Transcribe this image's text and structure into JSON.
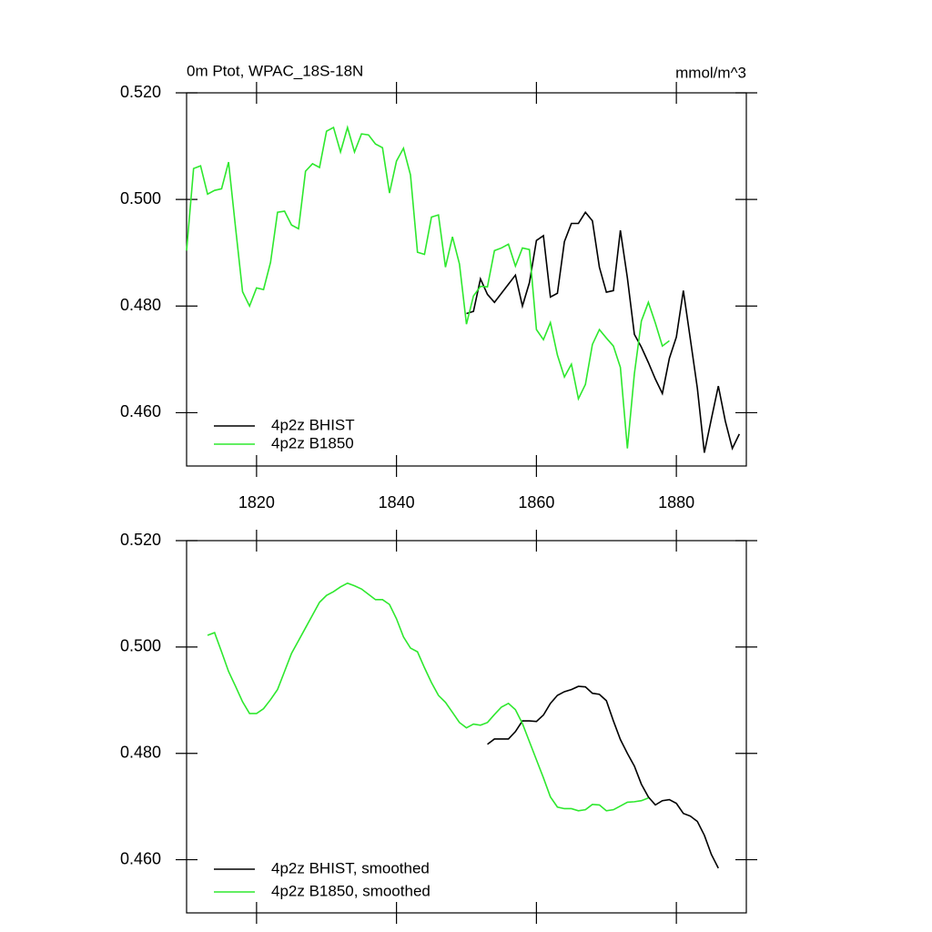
{
  "chart_data": [
    {
      "type": "line",
      "title": "0m Ptot, WPAC_18S-18N",
      "units": "mmol/m^3",
      "x": [
        1810,
        1811,
        1812,
        1813,
        1814,
        1815,
        1816,
        1817,
        1818,
        1819,
        1820,
        1821,
        1822,
        1823,
        1824,
        1825,
        1826,
        1827,
        1828,
        1829,
        1830,
        1831,
        1832,
        1833,
        1834,
        1835,
        1836,
        1837,
        1838,
        1839,
        1840,
        1841,
        1842,
        1843,
        1844,
        1845,
        1846,
        1847,
        1848,
        1849,
        1850,
        1851,
        1852,
        1853,
        1854,
        1855,
        1856,
        1857,
        1858,
        1859,
        1860,
        1861,
        1862,
        1863,
        1864,
        1865,
        1866,
        1867,
        1868,
        1869,
        1870,
        1871,
        1872,
        1873,
        1874,
        1875,
        1876,
        1877,
        1878,
        1879,
        1880,
        1881,
        1882,
        1883,
        1884,
        1885,
        1886,
        1887,
        1888,
        1889
      ],
      "xlim": [
        1810,
        1890
      ],
      "xticks": [
        1820,
        1840,
        1860,
        1880
      ],
      "xtick_labels": true,
      "ylim": [
        0.45,
        0.52
      ],
      "yticks": [
        {
          "value": 0.46,
          "label": "0.460"
        },
        {
          "value": 0.48,
          "label": "0.480"
        },
        {
          "value": 0.5,
          "label": "0.500"
        },
        {
          "value": 0.52,
          "label": "0.520"
        }
      ],
      "series": [
        {
          "name": "4p2z BHIST",
          "color": "#000000",
          "values": [
            null,
            null,
            null,
            null,
            null,
            null,
            null,
            null,
            null,
            null,
            null,
            null,
            null,
            null,
            null,
            null,
            null,
            null,
            null,
            null,
            null,
            null,
            null,
            null,
            null,
            null,
            null,
            null,
            null,
            null,
            null,
            null,
            null,
            null,
            null,
            null,
            null,
            null,
            null,
            null,
            0.4786,
            0.479,
            0.4851,
            0.4822,
            0.4807,
            0.4824,
            0.4841,
            0.4858,
            0.48,
            0.4844,
            0.4923,
            0.4932,
            0.4817,
            0.4824,
            0.4921,
            0.4955,
            0.4955,
            0.4976,
            0.496,
            0.4873,
            0.4826,
            0.4829,
            0.4942,
            0.4853,
            0.4747,
            0.4723,
            0.4694,
            0.4663,
            0.4636,
            0.4702,
            0.4742,
            0.4829,
            0.4738,
            0.4646,
            0.4525,
            0.4588,
            0.465,
            0.4584,
            0.4533,
            0.456
          ]
        },
        {
          "name": "4p2z B1850",
          "color": "#2ee82e",
          "values": [
            0.4904,
            0.5058,
            0.5063,
            0.501,
            0.5017,
            0.502,
            0.507,
            0.4947,
            0.4827,
            0.48,
            0.4834,
            0.4831,
            0.4882,
            0.4976,
            0.4978,
            0.4952,
            0.4945,
            0.5053,
            0.5067,
            0.506,
            0.5128,
            0.5135,
            0.5089,
            0.5135,
            0.5089,
            0.5123,
            0.5121,
            0.5104,
            0.5097,
            0.5012,
            0.5072,
            0.5096,
            0.5046,
            0.4901,
            0.4897,
            0.4967,
            0.4971,
            0.4873,
            0.493,
            0.4879,
            0.4766,
            0.4819,
            0.4837,
            0.4836,
            0.4904,
            0.4909,
            0.4916,
            0.4875,
            0.4909,
            0.4906,
            0.4756,
            0.4737,
            0.4769,
            0.4708,
            0.4667,
            0.4691,
            0.4626,
            0.4653,
            0.4728,
            0.4756,
            0.474,
            0.4725,
            0.4685,
            0.4533,
            0.4673,
            0.4772,
            0.4807,
            0.4768,
            0.4725,
            0.4735,
            null,
            null,
            null,
            null,
            null,
            null,
            null,
            null,
            null,
            null
          ]
        }
      ]
    },
    {
      "type": "line",
      "x": [
        1810,
        1811,
        1812,
        1813,
        1814,
        1815,
        1816,
        1817,
        1818,
        1819,
        1820,
        1821,
        1822,
        1823,
        1824,
        1825,
        1826,
        1827,
        1828,
        1829,
        1830,
        1831,
        1832,
        1833,
        1834,
        1835,
        1836,
        1837,
        1838,
        1839,
        1840,
        1841,
        1842,
        1843,
        1844,
        1845,
        1846,
        1847,
        1848,
        1849,
        1850,
        1851,
        1852,
        1853,
        1854,
        1855,
        1856,
        1857,
        1858,
        1859,
        1860,
        1861,
        1862,
        1863,
        1864,
        1865,
        1866,
        1867,
        1868,
        1869,
        1870,
        1871,
        1872,
        1873,
        1874,
        1875,
        1876,
        1877,
        1878,
        1879,
        1880,
        1881,
        1882,
        1883,
        1884,
        1885,
        1886,
        1887,
        1888,
        1889
      ],
      "xlim": [
        1810,
        1890
      ],
      "xticks": [
        1820,
        1840,
        1860,
        1880
      ],
      "xtick_labels": false,
      "ylim": [
        0.45,
        0.52
      ],
      "yticks": [
        {
          "value": 0.46,
          "label": "0.460"
        },
        {
          "value": 0.48,
          "label": "0.480"
        },
        {
          "value": 0.5,
          "label": "0.500"
        },
        {
          "value": 0.52,
          "label": "0.520"
        }
      ],
      "series": [
        {
          "name": "4p2z BHIST, smoothed",
          "color": "#000000",
          "values": [
            null,
            null,
            null,
            null,
            null,
            null,
            null,
            null,
            null,
            null,
            null,
            null,
            null,
            null,
            null,
            null,
            null,
            null,
            null,
            null,
            null,
            null,
            null,
            null,
            null,
            null,
            null,
            null,
            null,
            null,
            null,
            null,
            null,
            null,
            null,
            null,
            null,
            null,
            null,
            null,
            null,
            null,
            null,
            0.4817,
            0.4827,
            0.4827,
            0.4827,
            0.4841,
            0.4861,
            0.4861,
            0.486,
            0.4872,
            0.4894,
            0.4909,
            0.4916,
            0.492,
            0.4926,
            0.4925,
            0.4913,
            0.4911,
            0.4899,
            0.4861,
            0.4826,
            0.48,
            0.4776,
            0.4742,
            0.4718,
            0.4703,
            0.4711,
            0.4713,
            0.4706,
            0.4687,
            0.4682,
            0.4672,
            0.4646,
            0.461,
            0.4584,
            null,
            null,
            null
          ]
        },
        {
          "name": "4p2z B1850, smoothed",
          "color": "#2ee82e",
          "values": [
            null,
            null,
            null,
            0.5022,
            0.5027,
            0.4991,
            0.4954,
            0.4926,
            0.4897,
            0.4875,
            0.4875,
            0.4884,
            0.4901,
            0.492,
            0.4954,
            0.4988,
            0.5012,
            0.5036,
            0.506,
            0.5084,
            0.5097,
            0.5104,
            0.5113,
            0.512,
            0.5115,
            0.5109,
            0.5099,
            0.5089,
            0.5089,
            0.508,
            0.5053,
            0.5019,
            0.4998,
            0.4991,
            0.4961,
            0.4933,
            0.4909,
            0.4896,
            0.4877,
            0.4858,
            0.4848,
            0.4855,
            0.4853,
            0.4858,
            0.4873,
            0.4887,
            0.4894,
            0.4882,
            0.4856,
            0.4822,
            0.4788,
            0.4754,
            0.4718,
            0.4699,
            0.4696,
            0.4696,
            0.4692,
            0.4694,
            0.4704,
            0.4703,
            0.4692,
            0.4694,
            0.4701,
            0.4708,
            0.4709,
            0.4711,
            0.4716,
            null,
            null,
            null,
            null,
            null,
            null,
            null,
            null,
            null,
            null,
            null,
            null,
            null
          ]
        }
      ]
    }
  ]
}
